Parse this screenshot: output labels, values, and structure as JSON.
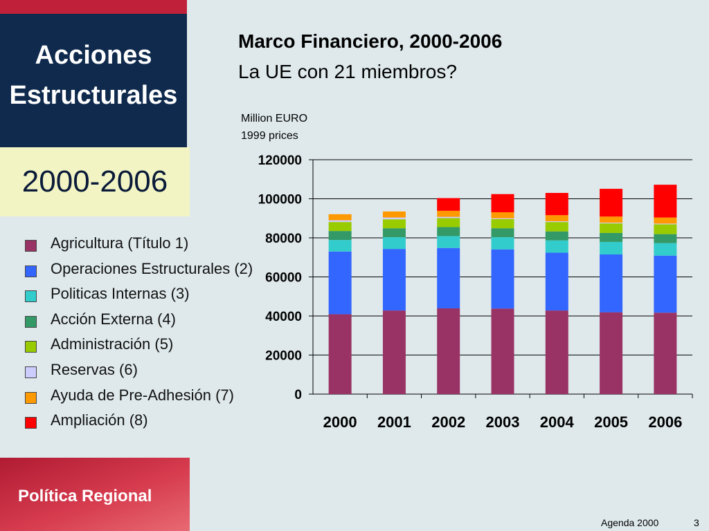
{
  "header": {
    "title_line1": "Acciones",
    "title_line2": "Estructurales",
    "period": "2000-2006"
  },
  "chart_heading": {
    "title": "Marco Financiero, 2000-2006",
    "subtitle": "La UE con 21 miembros?",
    "unit_line1": "Million EURO",
    "unit_line2": "1999 prices"
  },
  "legend": [
    {
      "label": "Agricultura (Título 1)",
      "color": "#993366"
    },
    {
      "label": "Operaciones Estructurales (2)",
      "color": "#3366ff"
    },
    {
      "label": "Politicas Internas (3)",
      "color": "#33cccc"
    },
    {
      "label": "Acción Externa (4)",
      "color": "#339966"
    },
    {
      "label": "Administración (5)",
      "color": "#99cc00"
    },
    {
      "label": "Reservas (6)",
      "color": "#ccccff"
    },
    {
      "label": "Ayuda de Pre-Adhesión (7)",
      "color": "#ff9900"
    },
    {
      "label": "Ampliación (8)",
      "color": "#ff0000"
    }
  ],
  "chart_data": {
    "type": "bar",
    "stacked": true,
    "title": "Marco Financiero, 2000-2006",
    "subtitle": "La UE con 21 miembros?",
    "ylabel": "Million EURO 1999 prices",
    "categories": [
      "2000",
      "2001",
      "2002",
      "2003",
      "2004",
      "2005",
      "2006"
    ],
    "ylim": [
      0,
      120000
    ],
    "yticks": [
      0,
      20000,
      40000,
      60000,
      80000,
      100000,
      120000
    ],
    "grid": true,
    "series": [
      {
        "name": "Agricultura (Título 1)",
        "color": "#993366",
        "values": [
          40900,
          42800,
          43900,
          43800,
          42800,
          41900,
          41700
        ]
      },
      {
        "name": "Operaciones Estructurales (2)",
        "color": "#3366ff",
        "values": [
          32100,
          31500,
          30900,
          30300,
          29600,
          29600,
          29200
        ]
      },
      {
        "name": "Politicas Internas (3)",
        "color": "#33cccc",
        "values": [
          5900,
          6000,
          6100,
          6200,
          6300,
          6400,
          6400
        ]
      },
      {
        "name": "Acción Externa (4)",
        "color": "#339966",
        "values": [
          4600,
          4600,
          4600,
          4600,
          4600,
          4600,
          4600
        ]
      },
      {
        "name": "Administración (5)",
        "color": "#99cc00",
        "values": [
          4600,
          4600,
          4600,
          4700,
          4800,
          4900,
          5000
        ]
      },
      {
        "name": "Reservas (6)",
        "color": "#ccccff",
        "values": [
          900,
          900,
          650,
          400,
          400,
          400,
          400
        ]
      },
      {
        "name": "Ayuda de Pre-Adhesión (7)",
        "color": "#ff9900",
        "values": [
          3100,
          3100,
          3100,
          3100,
          3100,
          3100,
          3100
        ]
      },
      {
        "name": "Ampliación (8)",
        "color": "#ff0000",
        "values": [
          0,
          0,
          6500,
          9300,
          11400,
          14200,
          16800
        ]
      }
    ]
  },
  "footer": {
    "brand": "Política Regional",
    "note": "Agenda 2000",
    "page": "3"
  }
}
